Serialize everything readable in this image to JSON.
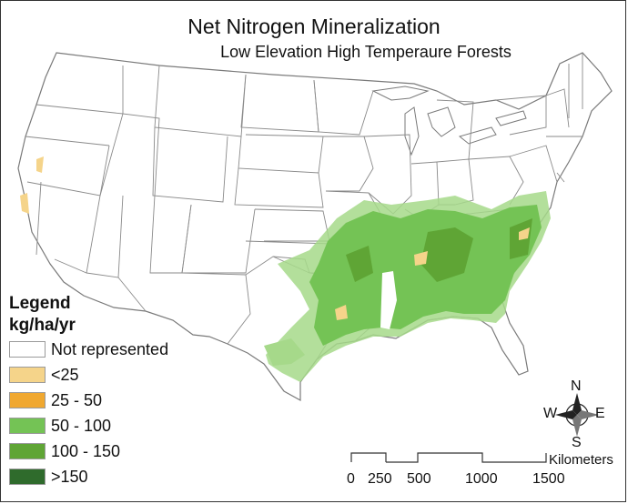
{
  "map": {
    "title": "Net Nitrogen Mineralization",
    "subtitle": "Low Elevation High Temperaure Forests",
    "legend": {
      "title": "Legend",
      "units": "kg/ha/yr",
      "items": [
        {
          "label": "Not represented",
          "color": "#ffffff"
        },
        {
          "label": "<25",
          "color": "#f5d48a"
        },
        {
          "label": "25 - 50",
          "color": "#f0a830"
        },
        {
          "label": "50 - 100",
          "color": "#74c355"
        },
        {
          "label": "100 - 150",
          "color": "#5fa535"
        },
        {
          "label": ">150",
          "color": "#2f6b2c"
        }
      ]
    },
    "compass": {
      "north": "N",
      "south": "S",
      "east": "E",
      "west": "W"
    },
    "scale_bar": {
      "unit": "Kilometers",
      "ticks": [
        "0",
        "250",
        "500",
        "1000",
        "1500"
      ]
    },
    "colors": {
      "state_outline": "#8a8a8a",
      "forest_main": "#74c355",
      "forest_sparse": "#a6d98a",
      "forest_low": "#f5d48a"
    }
  }
}
